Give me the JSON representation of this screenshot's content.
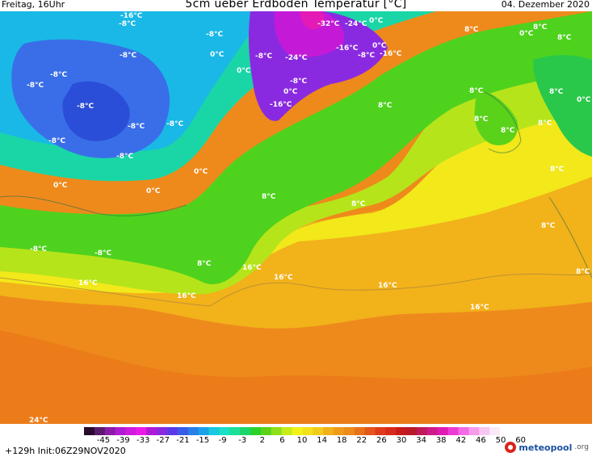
{
  "header": {
    "left": "Freitag, 16Uhr",
    "title": "5cm ueber Erdboden Temperatur [°C]",
    "right": "04. Dezember 2020"
  },
  "map_labels": [
    {
      "text": "-8°C"
    },
    {
      "text": "-16°C"
    },
    {
      "text": "-8°C"
    },
    {
      "text": "-8°C"
    },
    {
      "text": "-8°C"
    },
    {
      "text": "-8°C"
    },
    {
      "text": "-8°C"
    },
    {
      "text": "-8°C"
    },
    {
      "text": "-8°C"
    },
    {
      "text": "-8°C"
    },
    {
      "text": "0°C"
    },
    {
      "text": "0°C"
    },
    {
      "text": "-8°C"
    },
    {
      "text": "-24°C"
    },
    {
      "text": "-32°C"
    },
    {
      "text": "-24°C"
    },
    {
      "text": "0°C"
    },
    {
      "text": "-16°C"
    },
    {
      "text": "-8°C"
    },
    {
      "text": "-16°C"
    },
    {
      "text": "0°C"
    },
    {
      "text": "-8°C"
    },
    {
      "text": "-16°C"
    },
    {
      "text": "0°C"
    },
    {
      "text": "-8°C"
    },
    {
      "text": "0°C"
    },
    {
      "text": "0°C"
    },
    {
      "text": "0°C"
    },
    {
      "text": "8°C"
    },
    {
      "text": "8°C"
    },
    {
      "text": "8°C"
    },
    {
      "text": "8°C"
    },
    {
      "text": "8°C"
    },
    {
      "text": "8°C"
    },
    {
      "text": "8°C"
    },
    {
      "text": "8°C"
    },
    {
      "text": "8°C"
    },
    {
      "text": "0°C"
    },
    {
      "text": "8°C"
    },
    {
      "text": "8°C"
    },
    {
      "text": "8°C"
    },
    {
      "text": "8°C"
    },
    {
      "text": "8°C"
    },
    {
      "text": "8°C"
    },
    {
      "text": "16°C"
    },
    {
      "text": "16°C"
    },
    {
      "text": "16°C"
    },
    {
      "text": "16°C"
    },
    {
      "text": "16°C"
    },
    {
      "text": "16°C"
    },
    {
      "text": "24°C"
    },
    {
      "text": "-8°C"
    },
    {
      "text": "-8°C"
    },
    {
      "text": "0°C"
    }
  ],
  "legend": {
    "ticks": [
      "-45",
      "-39",
      "-33",
      "-27",
      "-21",
      "-15",
      "-9",
      "-3",
      "2",
      "6",
      "10",
      "14",
      "18",
      "22",
      "26",
      "30",
      "34",
      "38",
      "42",
      "46",
      "50",
      "60"
    ],
    "colors": [
      "#2a0a2e",
      "#5a1a6e",
      "#8a1aa8",
      "#b01ad0",
      "#d01ae0",
      "#e81ae8",
      "#b01ad6",
      "#8a28e0",
      "#5a3ae8",
      "#3a5ae8",
      "#2a7ee8",
      "#1aa2e8",
      "#1ac8e0",
      "#1ae0c8",
      "#1ae09a",
      "#1ad66a",
      "#2ad22a",
      "#5ad21a",
      "#8ee01a",
      "#c6ec1a",
      "#f2f21a",
      "#f2e21a",
      "#f2cc1a",
      "#f2b01a",
      "#ee9a1a",
      "#ec8a1a",
      "#e8721a",
      "#e4561a",
      "#e03a1a",
      "#d82a1a",
      "#c81a1a",
      "#b81a2a",
      "#c01a5a",
      "#d01a8a",
      "#e01ab4",
      "#ec3ad4",
      "#f26ae4",
      "#f69aec",
      "#f8c6f2",
      "#faeaf8"
    ],
    "run": "+129h  Init:06Z29NOV2020",
    "brand_name": "meteopool",
    "brand_suffix": ".org"
  }
}
